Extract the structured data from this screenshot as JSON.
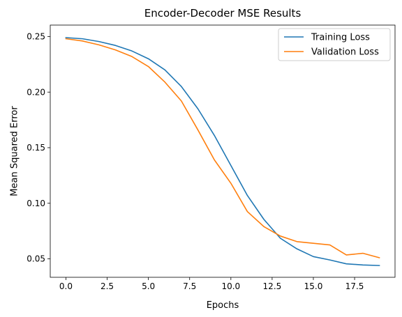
{
  "chart_data": {
    "type": "line",
    "title": "Encoder-Decoder MSE Results",
    "xlabel": "Epochs",
    "ylabel": "Mean Squared Error",
    "xlim": [
      -0.95,
      19.95
    ],
    "ylim": [
      0.0334,
      0.2603
    ],
    "xticks": [
      0.0,
      2.5,
      5.0,
      7.5,
      10.0,
      12.5,
      15.0,
      17.5
    ],
    "xtick_labels": [
      "0.0",
      "2.5",
      "5.0",
      "7.5",
      "10.0",
      "12.5",
      "15.0",
      "17.5"
    ],
    "yticks": [
      0.05,
      0.1,
      0.15,
      0.2,
      0.25
    ],
    "ytick_labels": [
      "0.05",
      "0.10",
      "0.15",
      "0.20",
      "0.25"
    ],
    "grid": false,
    "legend_position": "top-right",
    "x": [
      0,
      1,
      2,
      3,
      4,
      5,
      6,
      7,
      8,
      9,
      10,
      11,
      12,
      13,
      14,
      15,
      16,
      17,
      18,
      19
    ],
    "series": [
      {
        "name": "Training Loss",
        "color": "#1f77b4",
        "values": [
          0.249,
          0.248,
          0.2455,
          0.242,
          0.237,
          0.23,
          0.22,
          0.205,
          0.185,
          0.161,
          0.134,
          0.107,
          0.0855,
          0.0685,
          0.059,
          0.052,
          0.049,
          0.0455,
          0.0445,
          0.044
        ]
      },
      {
        "name": "Validation Loss",
        "color": "#ff7f0e",
        "values": [
          0.248,
          0.246,
          0.2425,
          0.238,
          0.232,
          0.223,
          0.209,
          0.192,
          0.166,
          0.139,
          0.118,
          0.0925,
          0.079,
          0.0705,
          0.0655,
          0.064,
          0.0625,
          0.0535,
          0.055,
          0.051
        ]
      }
    ]
  }
}
